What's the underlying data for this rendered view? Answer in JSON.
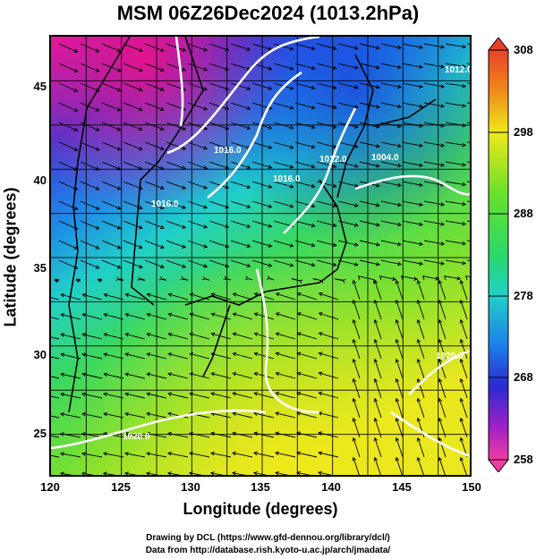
{
  "title": "MSM 06Z26Dec2024 (1013.2hPa)",
  "axes": {
    "xlabel": "Longitude (degrees)",
    "ylabel": "Latitude  (degrees)",
    "xticks": [
      "120",
      "125",
      "130",
      "135",
      "140",
      "145",
      "150"
    ],
    "yticks": [
      "45",
      "40",
      "35",
      "30",
      "25"
    ]
  },
  "colorbar": {
    "ticks": [
      "308",
      "298",
      "288",
      "278",
      "268",
      "258"
    ],
    "range": [
      258,
      308
    ]
  },
  "contours": [
    "1016.0",
    "1016.0",
    "1016.0",
    "1012.0",
    "1004.0",
    "1020.0",
    "1020.0",
    "1012.0"
  ],
  "credits": {
    "line1": "Drawing by DCL (https://www.gfd-dennou.org/library/dcl/)",
    "line2": "Data from http://database.rish.kyoto-u.ac.jp/arch/jmadata/"
  },
  "colors": {
    "cold": "#e8148c",
    "cool": "#1e4fd8",
    "mid": "#1fd0c8",
    "warm": "#3ee03a",
    "hot": "#f5e81a"
  }
}
